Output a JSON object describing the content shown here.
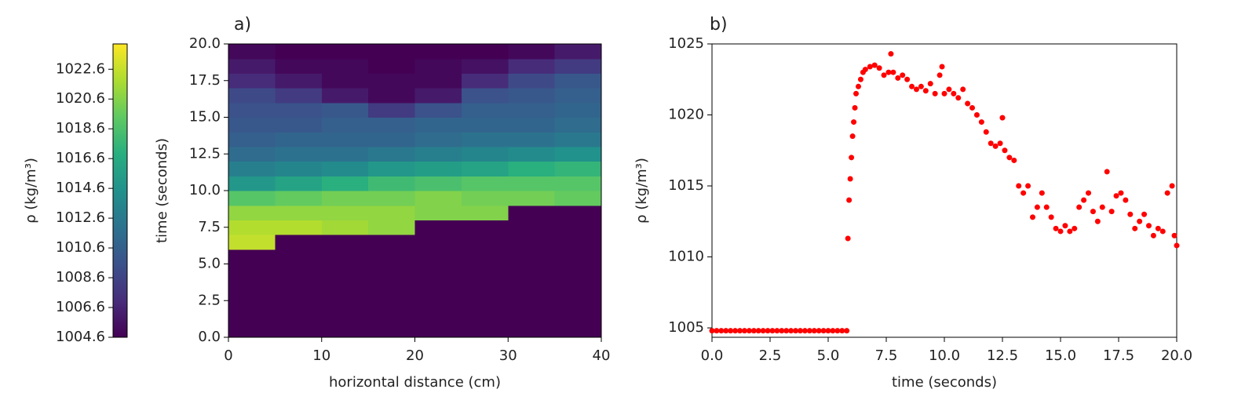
{
  "chart_data": [
    {
      "type": "heatmap",
      "title": "a)",
      "xlabel": "horizontal distance (cm)",
      "ylabel": "time (seconds)",
      "xlim": [
        0,
        40
      ],
      "ylim": [
        0,
        20
      ],
      "xticks": [
        0,
        10,
        20,
        30,
        40
      ],
      "yticks": [
        {
          "value": 0,
          "label": "0.0"
        },
        2.5,
        {
          "value": 5,
          "label": "5.0"
        },
        7.5,
        {
          "value": 10,
          "label": "10.0"
        },
        12.5,
        {
          "value": 15,
          "label": "15.0"
        },
        17.5,
        {
          "value": 20,
          "label": "20.0"
        }
      ],
      "colormap": "viridis",
      "zlim": [
        1004.6,
        1024.3
      ],
      "colorbar_label": "ρ (kg/m³)",
      "zticks": [
        1004.6,
        1006.6,
        1008.6,
        1010.6,
        1012.6,
        1014.6,
        1016.6,
        1018.6,
        1020.6,
        1022.6
      ],
      "z": [
        [
          1004.6,
          1004.6,
          1004.6,
          1004.6,
          1004.6,
          1004.6,
          1004.6,
          1004.6
        ],
        [
          1004.6,
          1004.6,
          1004.6,
          1004.6,
          1004.6,
          1004.6,
          1004.6,
          1004.6
        ],
        [
          1004.6,
          1004.6,
          1004.6,
          1004.6,
          1004.6,
          1004.6,
          1004.6,
          1004.6
        ],
        [
          1004.6,
          1004.6,
          1004.6,
          1004.6,
          1004.6,
          1004.6,
          1004.6,
          1004.6
        ],
        [
          1004.6,
          1004.6,
          1004.6,
          1004.6,
          1004.6,
          1004.6,
          1004.6,
          1004.6
        ],
        [
          1004.6,
          1004.6,
          1004.6,
          1004.6,
          1004.6,
          1004.6,
          1004.6,
          1004.6
        ],
        [
          1022.5,
          1004.6,
          1004.6,
          1004.6,
          1004.6,
          1004.6,
          1004.6,
          1004.6
        ],
        [
          1022,
          1022,
          1021.5,
          1021,
          1004.6,
          1004.6,
          1004.6,
          1004.6
        ],
        [
          1021,
          1021,
          1021,
          1021,
          1020.5,
          1020.5,
          1004.6,
          1004.6
        ],
        [
          1019,
          1019.5,
          1020,
          1020,
          1020.5,
          1020,
          1020,
          1019.5
        ],
        [
          1015,
          1016,
          1017,
          1018,
          1018.5,
          1019,
          1019,
          1019
        ],
        [
          1013,
          1013.5,
          1014,
          1015,
          1015.5,
          1016,
          1017,
          1017.5
        ],
        [
          1011.5,
          1012,
          1012,
          1012.5,
          1013,
          1013.5,
          1014,
          1014.5
        ],
        [
          1010.5,
          1011,
          1011,
          1011,
          1011.5,
          1012,
          1012,
          1012.5
        ],
        [
          1010,
          1010,
          1010.5,
          1010.5,
          1011,
          1011,
          1011,
          1011.5
        ],
        [
          1009.5,
          1009.5,
          1010,
          1008,
          1009.5,
          1010.5,
          1010.5,
          1011
        ],
        [
          1009,
          1008,
          1006,
          1005,
          1006,
          1009.5,
          1010,
          1010.5
        ],
        [
          1007,
          1006,
          1005,
          1005,
          1005,
          1007,
          1009,
          1010
        ],
        [
          1006,
          1005,
          1005,
          1004.6,
          1005,
          1005.5,
          1007,
          1008
        ],
        [
          1005,
          1004.6,
          1004.6,
          1004.6,
          1004.6,
          1004.6,
          1005,
          1006
        ]
      ]
    },
    {
      "type": "scatter",
      "title": "b)",
      "xlabel": "time (seconds)",
      "ylabel": "ρ (kg/m³)",
      "color": "#ff0000",
      "xlim": [
        0,
        20
      ],
      "ylim": [
        1004.34,
        1025
      ],
      "xticks": [
        {
          "value": 0,
          "label": "0.0"
        },
        2.5,
        {
          "value": 5,
          "label": "5.0"
        },
        7.5,
        {
          "value": 10,
          "label": "10.0"
        },
        12.5,
        {
          "value": 15,
          "label": "15.0"
        },
        17.5,
        {
          "value": 20,
          "label": "20.0"
        }
      ],
      "yticks": [
        1005,
        1010,
        1015,
        1020,
        1025
      ],
      "x": [
        0,
        0.2,
        0.4,
        0.6,
        0.8,
        1,
        1.2,
        1.4,
        1.6,
        1.8,
        2,
        2.2,
        2.4,
        2.6,
        2.8,
        3,
        3.2,
        3.4,
        3.6,
        3.8,
        4,
        4.2,
        4.4,
        4.6,
        4.8,
        5,
        5.2,
        5.4,
        5.6,
        5.8,
        5.85,
        5.9,
        5.95,
        6,
        6.05,
        6.1,
        6.15,
        6.2,
        6.3,
        6.4,
        6.5,
        6.6,
        6.8,
        7,
        7.2,
        7.4,
        7.6,
        7.7,
        7.8,
        8,
        8.2,
        8.4,
        8.6,
        8.8,
        9,
        9.2,
        9.4,
        9.6,
        9.8,
        9.9,
        10,
        10.2,
        10.4,
        10.6,
        10.8,
        11,
        11.2,
        11.4,
        11.6,
        11.8,
        12,
        12.2,
        12.4,
        12.5,
        12.6,
        12.8,
        13,
        13.2,
        13.4,
        13.6,
        13.8,
        14,
        14.2,
        14.4,
        14.6,
        14.8,
        15,
        15.2,
        15.4,
        15.6,
        15.8,
        16,
        16.2,
        16.4,
        16.6,
        16.8,
        17,
        17.2,
        17.4,
        17.6,
        17.8,
        18,
        18.2,
        18.4,
        18.6,
        18.8,
        19,
        19.2,
        19.4,
        19.6,
        19.8,
        19.9,
        20
      ],
      "values": [
        1004.8,
        1004.8,
        1004.8,
        1004.8,
        1004.8,
        1004.8,
        1004.8,
        1004.8,
        1004.8,
        1004.8,
        1004.8,
        1004.8,
        1004.8,
        1004.8,
        1004.8,
        1004.8,
        1004.8,
        1004.8,
        1004.8,
        1004.8,
        1004.8,
        1004.8,
        1004.8,
        1004.8,
        1004.8,
        1004.8,
        1004.8,
        1004.8,
        1004.8,
        1004.8,
        1011.3,
        1014,
        1015.5,
        1017,
        1018.5,
        1019.5,
        1020.5,
        1021.5,
        1022,
        1022.5,
        1023,
        1023.2,
        1023.4,
        1023.5,
        1023.3,
        1022.8,
        1023,
        1024.3,
        1023,
        1022.6,
        1022.8,
        1022.5,
        1022,
        1021.8,
        1022,
        1021.7,
        1022.2,
        1021.5,
        1022.8,
        1023.4,
        1021.5,
        1021.8,
        1021.5,
        1021.2,
        1021.8,
        1020.8,
        1020.5,
        1020,
        1019.5,
        1018.8,
        1018,
        1017.8,
        1018,
        1019.8,
        1017.5,
        1017,
        1016.8,
        1015,
        1014.5,
        1015,
        1012.8,
        1013.5,
        1014.5,
        1013.5,
        1012.8,
        1012,
        1011.8,
        1012.2,
        1011.8,
        1012,
        1013.5,
        1014,
        1014.5,
        1013.2,
        1012.5,
        1013.5,
        1016,
        1013.2,
        1014.3,
        1014.5,
        1014,
        1013,
        1012,
        1012.5,
        1013,
        1012.2,
        1011.5,
        1012,
        1011.8,
        1014.5,
        1015,
        1011.5,
        1010.8
      ]
    }
  ]
}
